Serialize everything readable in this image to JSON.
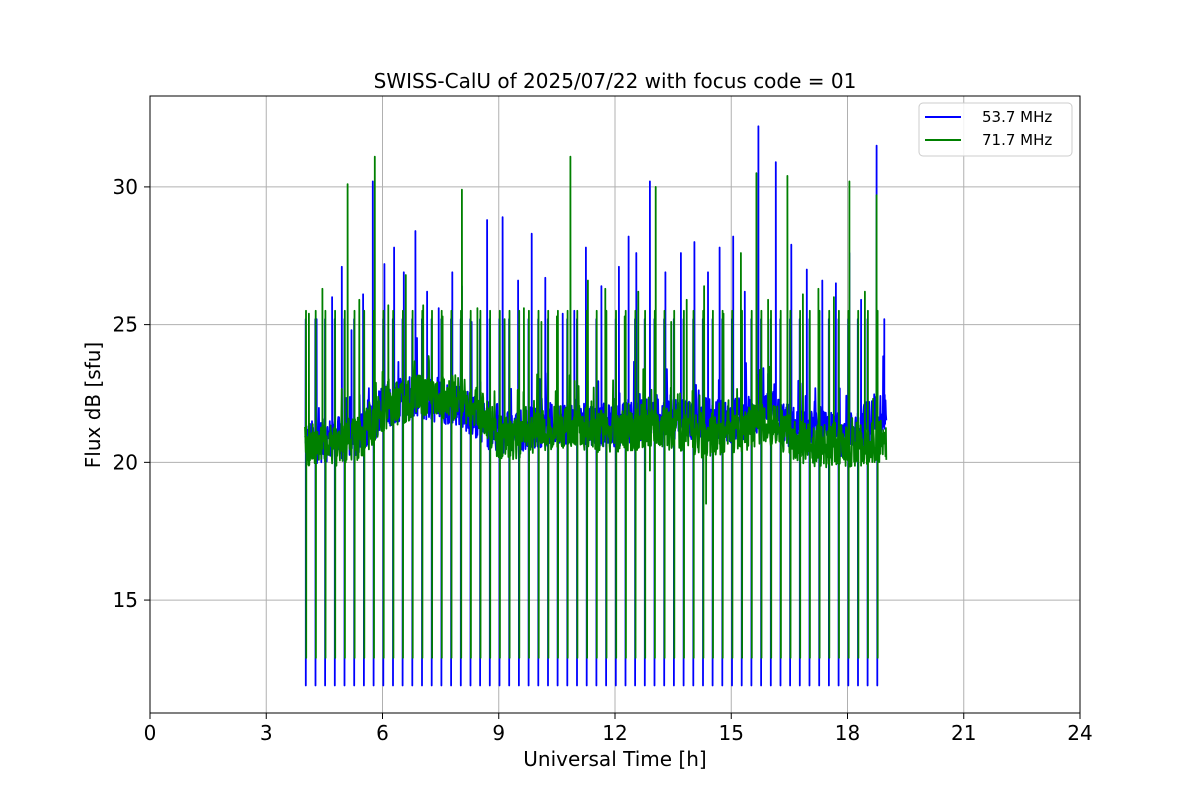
{
  "chart_data": {
    "type": "line",
    "title": "SWISS-CalU of 2025/07/22 with focus code = 01",
    "xlabel": "Universal Time [h]",
    "ylabel": "Flux dB [sfu]",
    "xlim": [
      0,
      24
    ],
    "ylim": [
      10.9,
      33.3
    ],
    "xticks": [
      0,
      3,
      6,
      9,
      12,
      15,
      18,
      21,
      24
    ],
    "xtick_labels": [
      "0",
      "3",
      "6",
      "9",
      "12",
      "15",
      "18",
      "21",
      "24"
    ],
    "yticks": [
      15,
      20,
      25,
      30
    ],
    "ytick_labels": [
      "15",
      "20",
      "25",
      "30"
    ],
    "grid": true,
    "legend_position": "top-right",
    "data_range_hours": [
      4.0,
      19.0
    ],
    "calibration_interval_hours": 0.25,
    "series": [
      {
        "name": "53.7 MHz",
        "color": "#0000ff",
        "calibration_dip_value": 11.9,
        "calibration_peak_value": 25.2,
        "baseline": [
          [
            4.0,
            20.7
          ],
          [
            5.0,
            20.9
          ],
          [
            5.5,
            21.0
          ],
          [
            6.0,
            22.0
          ],
          [
            6.5,
            22.3
          ],
          [
            7.0,
            22.3
          ],
          [
            7.5,
            22.2
          ],
          [
            8.0,
            22.1
          ],
          [
            8.5,
            21.5
          ],
          [
            9.0,
            21.0
          ],
          [
            10.0,
            21.3
          ],
          [
            11.0,
            21.5
          ],
          [
            12.0,
            21.3
          ],
          [
            13.0,
            21.7
          ],
          [
            14.0,
            21.6
          ],
          [
            15.0,
            21.5
          ],
          [
            16.0,
            21.9
          ],
          [
            16.5,
            21.3
          ],
          [
            17.0,
            21.1
          ],
          [
            18.0,
            21.0
          ],
          [
            19.0,
            21.9
          ]
        ],
        "spikes": [
          [
            4.3,
            25.2
          ],
          [
            4.7,
            26.0
          ],
          [
            4.95,
            27.1
          ],
          [
            5.2,
            24.8
          ],
          [
            5.5,
            26.1
          ],
          [
            5.75,
            30.2
          ],
          [
            6.05,
            27.2
          ],
          [
            6.3,
            27.8
          ],
          [
            6.55,
            26.9
          ],
          [
            6.85,
            28.4
          ],
          [
            7.15,
            26.2
          ],
          [
            7.45,
            25.6
          ],
          [
            7.8,
            26.9
          ],
          [
            8.05,
            26.4
          ],
          [
            8.3,
            25.1
          ],
          [
            8.7,
            28.8
          ],
          [
            9.1,
            28.9
          ],
          [
            9.5,
            26.6
          ],
          [
            9.85,
            28.3
          ],
          [
            10.2,
            26.7
          ],
          [
            10.65,
            25.4
          ],
          [
            10.95,
            25.5
          ],
          [
            11.25,
            27.8
          ],
          [
            11.65,
            26.4
          ],
          [
            12.1,
            27.1
          ],
          [
            12.35,
            28.2
          ],
          [
            12.55,
            27.6
          ],
          [
            12.9,
            30.2
          ],
          [
            13.3,
            26.9
          ],
          [
            13.7,
            27.6
          ],
          [
            14.05,
            28.0
          ],
          [
            14.4,
            26.9
          ],
          [
            14.7,
            27.8
          ],
          [
            15.05,
            28.2
          ],
          [
            15.35,
            26.2
          ],
          [
            15.7,
            32.2
          ],
          [
            16.15,
            30.9
          ],
          [
            16.55,
            27.9
          ],
          [
            16.95,
            27.0
          ],
          [
            17.35,
            26.6
          ],
          [
            17.7,
            26.5
          ],
          [
            18.05,
            27.6
          ],
          [
            18.35,
            25.9
          ],
          [
            18.75,
            31.5
          ],
          [
            18.95,
            25.2
          ]
        ]
      },
      {
        "name": "71.7 MHz",
        "color": "#008000",
        "calibration_dip_value": 12.9,
        "calibration_peak_value": 25.5,
        "baseline": [
          [
            4.0,
            20.6
          ],
          [
            4.5,
            20.8
          ],
          [
            5.0,
            20.6
          ],
          [
            5.5,
            21.0
          ],
          [
            6.0,
            21.9
          ],
          [
            6.5,
            22.2
          ],
          [
            7.0,
            22.4
          ],
          [
            7.5,
            22.4
          ],
          [
            8.0,
            22.3
          ],
          [
            8.5,
            21.9
          ],
          [
            9.0,
            20.9
          ],
          [
            9.5,
            20.9
          ],
          [
            10.0,
            21.2
          ],
          [
            11.0,
            21.3
          ],
          [
            12.0,
            21.0
          ],
          [
            13.0,
            21.4
          ],
          [
            14.0,
            20.9
          ],
          [
            15.0,
            21.1
          ],
          [
            16.0,
            21.4
          ],
          [
            16.5,
            21.0
          ],
          [
            17.0,
            20.6
          ],
          [
            18.0,
            20.6
          ],
          [
            19.0,
            20.8
          ]
        ],
        "spikes": [
          [
            4.1,
            25.4
          ],
          [
            4.45,
            26.3
          ],
          [
            5.1,
            30.1
          ],
          [
            5.4,
            25.9
          ],
          [
            5.8,
            31.1
          ],
          [
            6.15,
            25.7
          ],
          [
            6.6,
            26.8
          ],
          [
            7.05,
            25.7
          ],
          [
            7.55,
            25.3
          ],
          [
            8.05,
            29.9
          ],
          [
            8.45,
            25.6
          ],
          [
            9.15,
            25.2
          ],
          [
            9.65,
            25.6
          ],
          [
            10.1,
            25.1
          ],
          [
            10.5,
            25.3
          ],
          [
            10.85,
            31.1
          ],
          [
            11.3,
            26.6
          ],
          [
            11.75,
            26.3
          ],
          [
            12.25,
            25.3
          ],
          [
            12.6,
            26.2
          ],
          [
            13.05,
            30.0
          ],
          [
            13.45,
            25.1
          ],
          [
            13.85,
            25.9
          ],
          [
            14.3,
            26.4
          ],
          [
            14.8,
            25.4
          ],
          [
            15.25,
            27.6
          ],
          [
            15.65,
            30.5
          ],
          [
            15.95,
            25.9
          ],
          [
            16.45,
            30.4
          ],
          [
            16.85,
            26.1
          ],
          [
            17.25,
            26.3
          ],
          [
            17.65,
            26.0
          ],
          [
            18.05,
            30.2
          ],
          [
            18.45,
            26.2
          ],
          [
            18.75,
            29.7
          ]
        ],
        "dips": [
          [
            14.35,
            18.5
          ],
          [
            12.9,
            19.7
          ]
        ]
      }
    ]
  }
}
